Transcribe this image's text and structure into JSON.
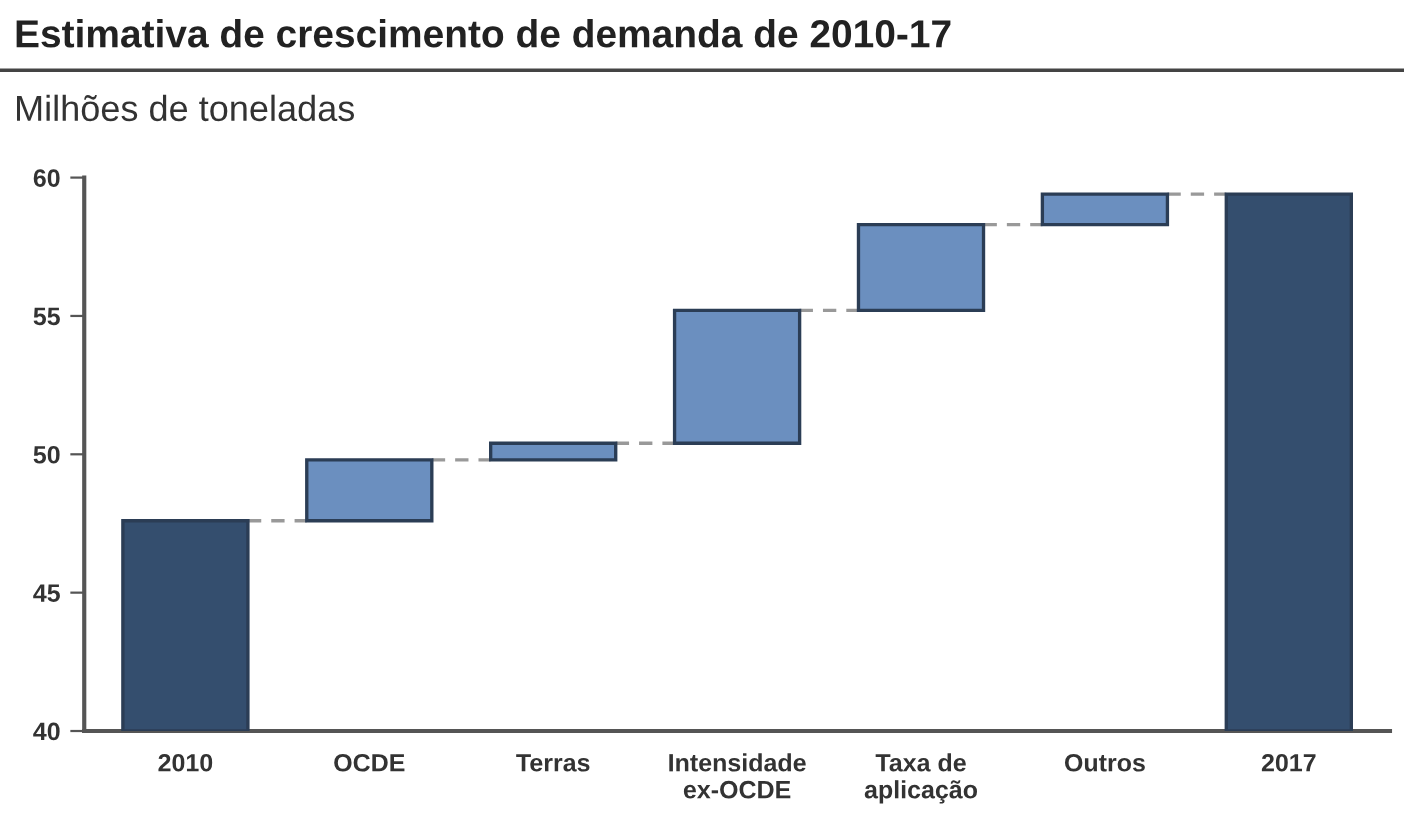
{
  "chart_data": {
    "type": "bar",
    "title": "Estimativa de crescimento de demanda de 2010-17",
    "subtitle": "Milhões de toneladas",
    "categories": [
      "2010",
      "OCDE",
      "Terras",
      "Intensidade\nex-OCDE",
      "Taxa de\naplicação",
      "Outros",
      "2017"
    ],
    "base": [
      40,
      47.6,
      49.8,
      50.4,
      55.2,
      58.3,
      40
    ],
    "values": [
      7.6,
      2.2,
      0.6,
      4.8,
      3.1,
      1.1,
      19.4
    ],
    "colors": [
      "#344e6e",
      "#6b8fbf",
      "#6b8fbf",
      "#6b8fbf",
      "#6b8fbf",
      "#6b8fbf",
      "#344e6e"
    ],
    "ylim": [
      40,
      60
    ],
    "yticks": [
      40,
      45,
      50,
      55,
      60
    ],
    "grid": false
  }
}
